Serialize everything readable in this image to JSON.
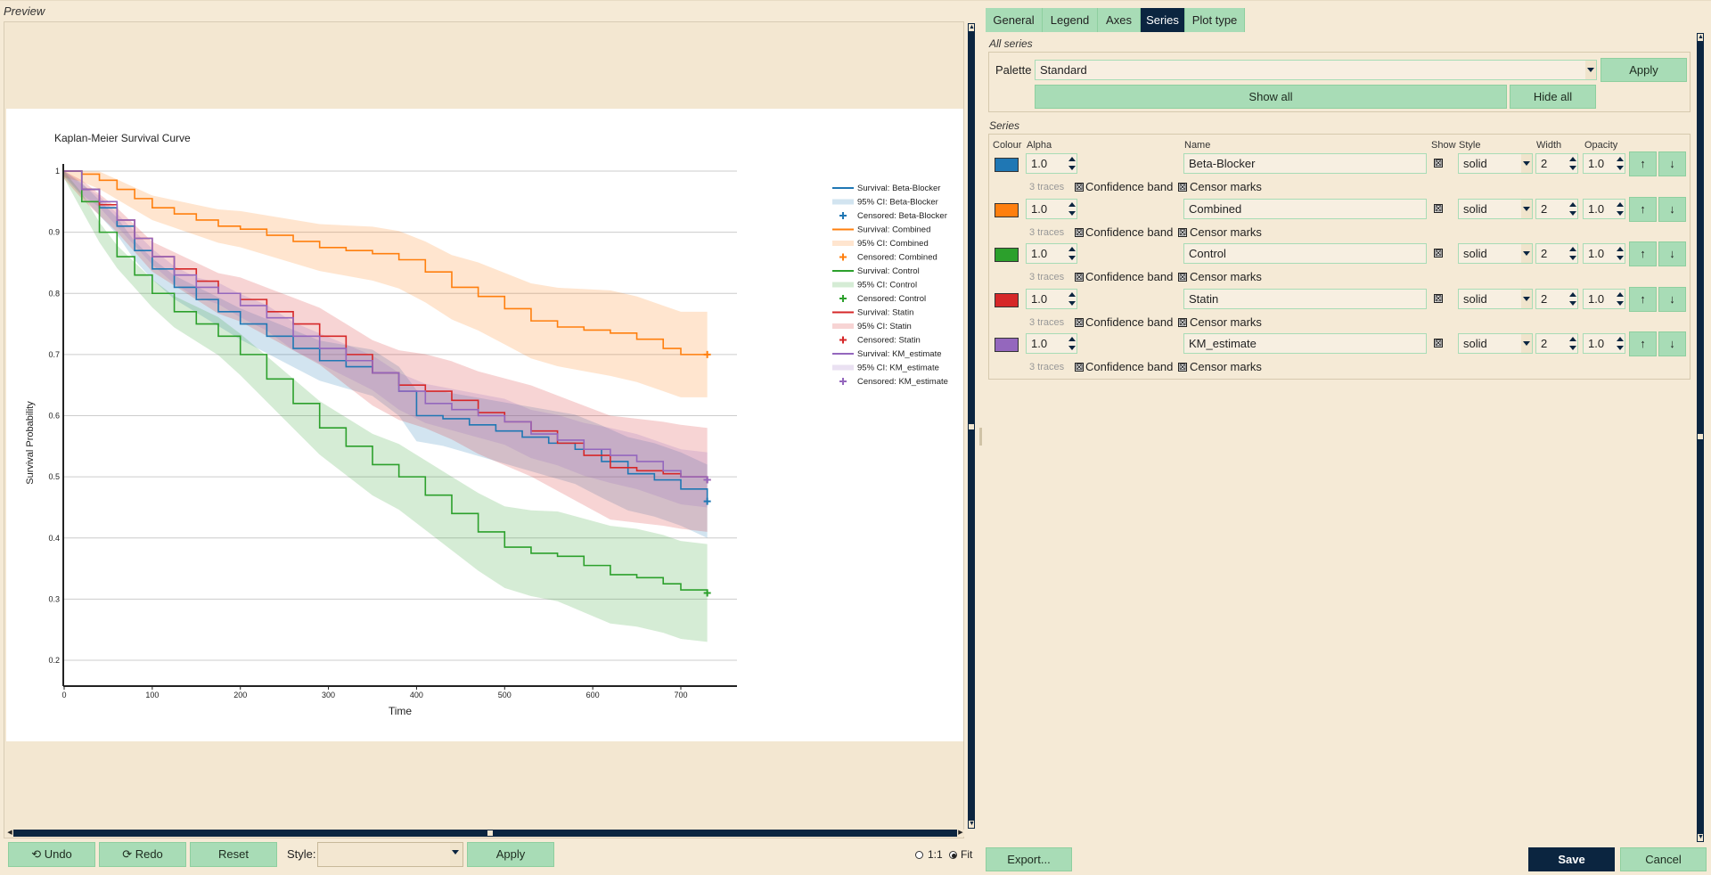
{
  "preview": {
    "label": "Preview"
  },
  "chart_data": {
    "type": "line",
    "title": "Kaplan-Meier Survival Curve",
    "xlabel": "Time",
    "ylabel": "Survival Probability",
    "xlim": [
      0,
      770
    ],
    "ylim": [
      0.19,
      1.04
    ],
    "xticks": [
      0,
      100,
      200,
      300,
      400,
      500,
      600,
      700
    ],
    "yticks": [
      0.2,
      0.3,
      0.4,
      0.5,
      0.6,
      0.7,
      0.8,
      0.9,
      1
    ],
    "grid": "horizontal",
    "legend_position": "right",
    "series": [
      {
        "name": "Beta-Blocker",
        "color": "#1f77b4",
        "x": [
          0,
          20,
          40,
          60,
          80,
          100,
          125,
          150,
          175,
          200,
          230,
          260,
          290,
          320,
          350,
          380,
          400,
          430,
          460,
          490,
          520,
          550,
          580,
          610,
          640,
          670,
          700,
          730
        ],
        "y": [
          1.0,
          0.97,
          0.94,
          0.91,
          0.87,
          0.84,
          0.81,
          0.79,
          0.77,
          0.75,
          0.73,
          0.71,
          0.69,
          0.68,
          0.67,
          0.64,
          0.6,
          0.595,
          0.585,
          0.575,
          0.565,
          0.555,
          0.545,
          0.525,
          0.505,
          0.495,
          0.48,
          0.46
        ],
        "ci_width": 0.06
      },
      {
        "name": "Combined",
        "color": "#ff7f0e",
        "x": [
          0,
          20,
          40,
          60,
          80,
          100,
          125,
          150,
          175,
          200,
          230,
          260,
          290,
          320,
          350,
          380,
          410,
          440,
          470,
          500,
          530,
          560,
          590,
          620,
          650,
          680,
          700,
          730
        ],
        "y": [
          1.0,
          0.995,
          0.985,
          0.97,
          0.955,
          0.94,
          0.93,
          0.92,
          0.91,
          0.905,
          0.895,
          0.885,
          0.875,
          0.87,
          0.865,
          0.855,
          0.835,
          0.81,
          0.795,
          0.775,
          0.755,
          0.745,
          0.74,
          0.735,
          0.725,
          0.71,
          0.7,
          0.7
        ],
        "ci_width": 0.07
      },
      {
        "name": "Control",
        "color": "#2ca02c",
        "x": [
          0,
          20,
          40,
          60,
          80,
          100,
          125,
          150,
          175,
          200,
          230,
          260,
          290,
          320,
          350,
          380,
          410,
          440,
          470,
          500,
          530,
          560,
          590,
          620,
          650,
          680,
          700,
          730
        ],
        "y": [
          1.0,
          0.95,
          0.9,
          0.86,
          0.83,
          0.8,
          0.77,
          0.75,
          0.73,
          0.7,
          0.66,
          0.62,
          0.58,
          0.55,
          0.52,
          0.5,
          0.47,
          0.44,
          0.41,
          0.385,
          0.375,
          0.37,
          0.355,
          0.34,
          0.335,
          0.325,
          0.315,
          0.31
        ],
        "ci_width": 0.08
      },
      {
        "name": "Statin",
        "color": "#d62728",
        "x": [
          0,
          20,
          40,
          60,
          80,
          100,
          125,
          150,
          175,
          200,
          230,
          260,
          290,
          320,
          350,
          380,
          410,
          440,
          470,
          500,
          530,
          560,
          590,
          620,
          650,
          680,
          700,
          730
        ],
        "y": [
          1.0,
          0.97,
          0.945,
          0.92,
          0.89,
          0.86,
          0.84,
          0.82,
          0.8,
          0.79,
          0.77,
          0.75,
          0.73,
          0.7,
          0.67,
          0.65,
          0.64,
          0.625,
          0.605,
          0.59,
          0.575,
          0.555,
          0.535,
          0.515,
          0.51,
          0.505,
          0.5,
          0.495
        ],
        "ci_width": 0.085
      },
      {
        "name": "KM_estimate",
        "color": "#9467bd",
        "x": [
          0,
          20,
          40,
          60,
          80,
          100,
          125,
          150,
          175,
          200,
          230,
          260,
          290,
          320,
          350,
          380,
          410,
          440,
          470,
          500,
          530,
          560,
          590,
          620,
          650,
          680,
          700,
          730
        ],
        "y": [
          1.0,
          0.97,
          0.95,
          0.92,
          0.89,
          0.86,
          0.83,
          0.81,
          0.8,
          0.78,
          0.76,
          0.73,
          0.71,
          0.69,
          0.67,
          0.64,
          0.62,
          0.61,
          0.6,
          0.59,
          0.57,
          0.56,
          0.545,
          0.535,
          0.525,
          0.51,
          0.5,
          0.495
        ],
        "ci_width": 0.045
      }
    ],
    "legend_entries": [
      "Survival: Beta-Blocker",
      "95% CI: Beta-Blocker",
      "Censored: Beta-Blocker",
      "Survival: Combined",
      "95% CI: Combined",
      "Censored: Combined",
      "Survival: Control",
      "95% CI: Control",
      "Censored: Control",
      "Survival: Statin",
      "95% CI: Statin",
      "Censored: Statin",
      "Survival: KM_estimate",
      "95% CI: KM_estimate",
      "Censored: KM_estimate"
    ]
  },
  "bottom_bar": {
    "undo": "⟲ Undo",
    "redo": "⟳ Redo",
    "reset": "Reset",
    "style_label": "Style:",
    "style_value": "",
    "apply": "Apply",
    "zoom_one": "1:1",
    "zoom_fit": "Fit"
  },
  "tabs": [
    {
      "label": "General",
      "active": false
    },
    {
      "label": "Legend",
      "active": false
    },
    {
      "label": "Axes",
      "active": false
    },
    {
      "label": "Series",
      "active": true
    },
    {
      "label": "Plot type",
      "active": false
    }
  ],
  "all_series": {
    "section_label": "All series",
    "palette_label": "Palette",
    "palette_value": "Standard",
    "apply": "Apply",
    "show_all": "Show all",
    "hide_all": "Hide all"
  },
  "series_section": {
    "section_label": "Series",
    "headers": {
      "colour": "Colour",
      "alpha": "Alpha",
      "name": "Name",
      "show": "Show",
      "style": "Style",
      "width": "Width",
      "opacity": "Opacity"
    },
    "rows": [
      {
        "color": "#1f77b4",
        "alpha": "1.0",
        "name": "Beta-Blocker",
        "show": "☒",
        "style": "solid",
        "width": "2",
        "opacity": "1.0",
        "traces": "3 traces",
        "confidence": "Confidence band",
        "censor": "Censor marks",
        "up": "↑",
        "down": "↓"
      },
      {
        "color": "#ff7f0e",
        "alpha": "1.0",
        "name": "Combined",
        "show": "☒",
        "style": "solid",
        "width": "2",
        "opacity": "1.0",
        "traces": "3 traces",
        "confidence": "Confidence band",
        "censor": "Censor marks",
        "up": "↑",
        "down": "↓"
      },
      {
        "color": "#2ca02c",
        "alpha": "1.0",
        "name": "Control",
        "show": "☒",
        "style": "solid",
        "width": "2",
        "opacity": "1.0",
        "traces": "3 traces",
        "confidence": "Confidence band",
        "censor": "Censor marks",
        "up": "↑",
        "down": "↓"
      },
      {
        "color": "#d62728",
        "alpha": "1.0",
        "name": "Statin",
        "show": "☒",
        "style": "solid",
        "width": "2",
        "opacity": "1.0",
        "traces": "3 traces",
        "confidence": "Confidence band",
        "censor": "Censor marks",
        "up": "↑",
        "down": "↓"
      },
      {
        "color": "#9467bd",
        "alpha": "1.0",
        "name": "KM_estimate",
        "show": "☒",
        "style": "solid",
        "width": "2",
        "opacity": "1.0",
        "traces": "3 traces",
        "confidence": "Confidence band",
        "censor": "Censor marks",
        "up": "↑",
        "down": "↓"
      }
    ]
  },
  "footer": {
    "export": "Export...",
    "save": "Save",
    "cancel": "Cancel"
  }
}
